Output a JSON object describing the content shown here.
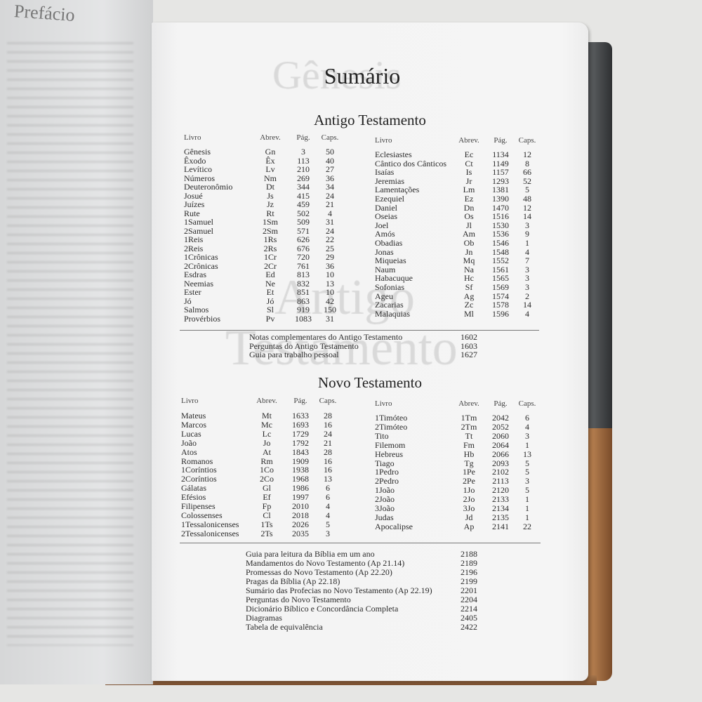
{
  "left_page": {
    "heading": "Prefácio"
  },
  "watermarks": {
    "top": "Gênesis",
    "middle_line1": "Antigo",
    "middle_line2": "Testamento"
  },
  "title": "Sumário",
  "headers": {
    "book": "Livro",
    "abbrev": "Abrev.",
    "page": "Pág.",
    "chapters": "Caps."
  },
  "old_testament": {
    "heading": "Antigo Testamento",
    "left": [
      [
        "Gênesis",
        "Gn",
        "3",
        "50"
      ],
      [
        "Êxodo",
        "Êx",
        "113",
        "40"
      ],
      [
        "Levítico",
        "Lv",
        "210",
        "27"
      ],
      [
        "Números",
        "Nm",
        "269",
        "36"
      ],
      [
        "Deuteronômio",
        "Dt",
        "344",
        "34"
      ],
      [
        "Josué",
        "Js",
        "415",
        "24"
      ],
      [
        "Juízes",
        "Jz",
        "459",
        "21"
      ],
      [
        "Rute",
        "Rt",
        "502",
        "4"
      ],
      [
        "1Samuel",
        "1Sm",
        "509",
        "31"
      ],
      [
        "2Samuel",
        "2Sm",
        "571",
        "24"
      ],
      [
        "1Reis",
        "1Rs",
        "626",
        "22"
      ],
      [
        "2Reis",
        "2Rs",
        "676",
        "25"
      ],
      [
        "1Crônicas",
        "1Cr",
        "720",
        "29"
      ],
      [
        "2Crônicas",
        "2Cr",
        "761",
        "36"
      ],
      [
        "Esdras",
        "Ed",
        "813",
        "10"
      ],
      [
        "Neemias",
        "Ne",
        "832",
        "13"
      ],
      [
        "Ester",
        "Et",
        "851",
        "10"
      ],
      [
        "Jó",
        "Jó",
        "863",
        "42"
      ],
      [
        "Salmos",
        "Sl",
        "919",
        "150"
      ],
      [
        "Provérbios",
        "Pv",
        "1083",
        "31"
      ]
    ],
    "right": [
      [
        "Eclesiastes",
        "Ec",
        "1134",
        "12"
      ],
      [
        "Cântico dos Cânticos",
        "Ct",
        "1149",
        "8"
      ],
      [
        "Isaías",
        "Is",
        "1157",
        "66"
      ],
      [
        "Jeremias",
        "Jr",
        "1293",
        "52"
      ],
      [
        "Lamentações",
        "Lm",
        "1381",
        "5"
      ],
      [
        "Ezequiel",
        "Ez",
        "1390",
        "48"
      ],
      [
        "Daniel",
        "Dn",
        "1470",
        "12"
      ],
      [
        "Oseias",
        "Os",
        "1516",
        "14"
      ],
      [
        "Joel",
        "Jl",
        "1530",
        "3"
      ],
      [
        "Amós",
        "Am",
        "1536",
        "9"
      ],
      [
        "Obadias",
        "Ob",
        "1546",
        "1"
      ],
      [
        "Jonas",
        "Jn",
        "1548",
        "4"
      ],
      [
        "Miqueias",
        "Mq",
        "1552",
        "7"
      ],
      [
        "Naum",
        "Na",
        "1561",
        "3"
      ],
      [
        "Habacuque",
        "Hc",
        "1565",
        "3"
      ],
      [
        "Sofonias",
        "Sf",
        "1569",
        "3"
      ],
      [
        "Ageu",
        "Ag",
        "1574",
        "2"
      ],
      [
        "Zacarias",
        "Zc",
        "1578",
        "14"
      ],
      [
        "Malaquias",
        "Ml",
        "1596",
        "4"
      ]
    ],
    "extras": [
      [
        "Notas complementares do Antigo Testamento",
        "1602"
      ],
      [
        "Perguntas do Antigo Testamento",
        "1603"
      ],
      [
        "Guia para trabalho pessoal",
        "1627"
      ]
    ]
  },
  "new_testament": {
    "heading": "Novo Testamento",
    "left": [
      [
        "Mateus",
        "Mt",
        "1633",
        "28"
      ],
      [
        "Marcos",
        "Mc",
        "1693",
        "16"
      ],
      [
        "Lucas",
        "Lc",
        "1729",
        "24"
      ],
      [
        "João",
        "Jo",
        "1792",
        "21"
      ],
      [
        "Atos",
        "At",
        "1843",
        "28"
      ],
      [
        "Romanos",
        "Rm",
        "1909",
        "16"
      ],
      [
        "1Coríntios",
        "1Co",
        "1938",
        "16"
      ],
      [
        "2Coríntios",
        "2Co",
        "1968",
        "13"
      ],
      [
        "Gálatas",
        "Gl",
        "1986",
        "6"
      ],
      [
        "Efésios",
        "Ef",
        "1997",
        "6"
      ],
      [
        "Filipenses",
        "Fp",
        "2010",
        "4"
      ],
      [
        "Colossenses",
        "Cl",
        "2018",
        "4"
      ],
      [
        "1Tessalonicenses",
        "1Ts",
        "2026",
        "5"
      ],
      [
        "2Tessalonicenses",
        "2Ts",
        "2035",
        "3"
      ]
    ],
    "right": [
      [
        "1Timóteo",
        "1Tm",
        "2042",
        "6"
      ],
      [
        "2Timóteo",
        "2Tm",
        "2052",
        "4"
      ],
      [
        "Tito",
        "Tt",
        "2060",
        "3"
      ],
      [
        "Filemom",
        "Fm",
        "2064",
        "1"
      ],
      [
        "Hebreus",
        "Hb",
        "2066",
        "13"
      ],
      [
        "Tiago",
        "Tg",
        "2093",
        "5"
      ],
      [
        "1Pedro",
        "1Pe",
        "2102",
        "5"
      ],
      [
        "2Pedro",
        "2Pe",
        "2113",
        "3"
      ],
      [
        "1João",
        "1Jo",
        "2120",
        "5"
      ],
      [
        "2João",
        "2Jo",
        "2133",
        "1"
      ],
      [
        "3João",
        "3Jo",
        "2134",
        "1"
      ],
      [
        "Judas",
        "Jd",
        "2135",
        "1"
      ],
      [
        "Apocalipse",
        "Ap",
        "2141",
        "22"
      ]
    ],
    "extras": [
      [
        "Guia para leitura da Bíblia em um ano",
        "2188"
      ],
      [
        "Mandamentos do Novo Testamento (Ap 21.14)",
        "2189"
      ],
      [
        "Promessas do Novo Testamento (Ap 22.20)",
        "2196"
      ],
      [
        "Pragas da Bíblia (Ap 22.18)",
        "2199"
      ],
      [
        "Sumário das Profecias no Novo Testamento (Ap 22.19)",
        "2201"
      ],
      [
        "Perguntas do Novo Testamento",
        "2204"
      ],
      [
        "Dicionário Bíblico e Concordância Completa",
        "2214"
      ],
      [
        "Diagramas",
        "2405"
      ],
      [
        "Tabela de equivalência",
        "2422"
      ]
    ]
  }
}
